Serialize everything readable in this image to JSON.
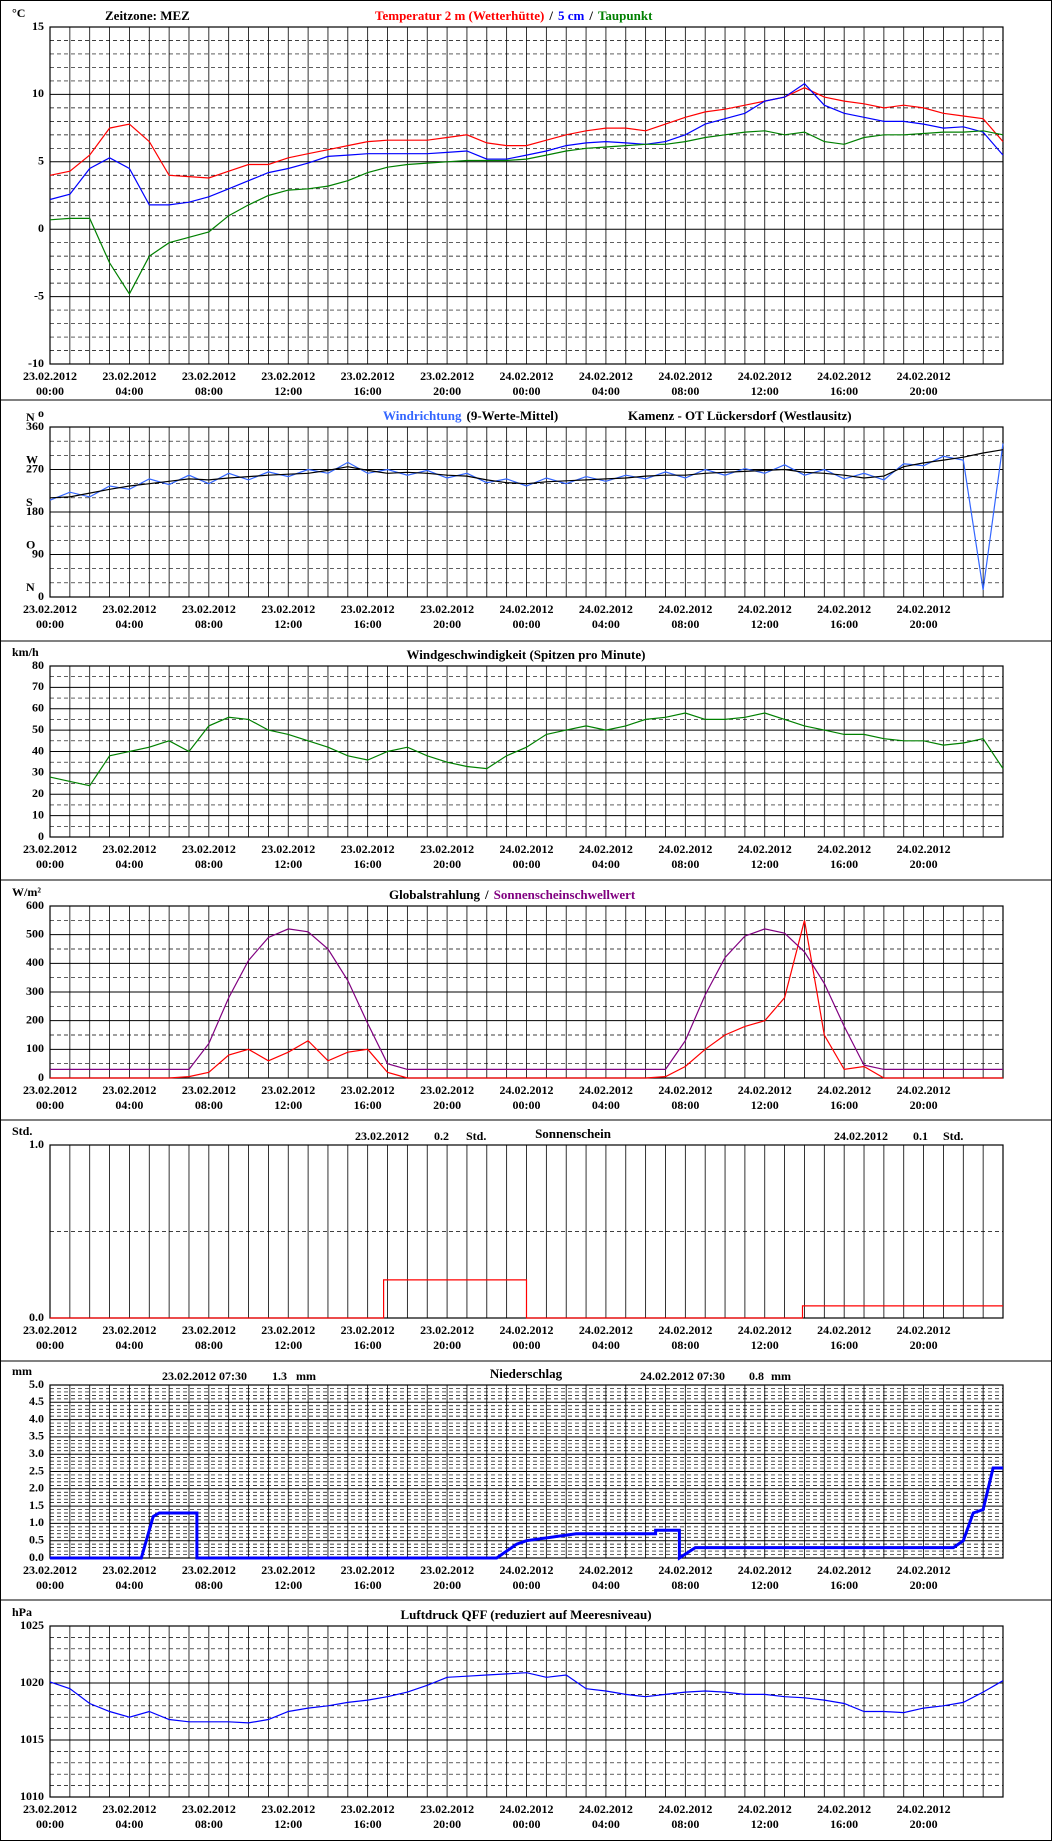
{
  "time_axis": {
    "xlim": [
      0,
      48
    ],
    "xticks": [
      {
        "value": 0,
        "date": "23.02.2012",
        "time": "00:00"
      },
      {
        "value": 4,
        "date": "23.02.2012",
        "time": "04:00"
      },
      {
        "value": 8,
        "date": "23.02.2012",
        "time": "08:00"
      },
      {
        "value": 12,
        "date": "23.02.2012",
        "time": "12:00"
      },
      {
        "value": 16,
        "date": "23.02.2012",
        "time": "16:00"
      },
      {
        "value": 20,
        "date": "23.02.2012",
        "time": "20:00"
      },
      {
        "value": 24,
        "date": "24.02.2012",
        "time": "00:00"
      },
      {
        "value": 28,
        "date": "24.02.2012",
        "time": "04:00"
      },
      {
        "value": 32,
        "date": "24.02.2012",
        "time": "08:00"
      },
      {
        "value": 36,
        "date": "24.02.2012",
        "time": "12:00"
      },
      {
        "value": 40,
        "date": "24.02.2012",
        "time": "16:00"
      },
      {
        "value": 44,
        "date": "24.02.2012",
        "time": "20:00"
      }
    ],
    "xgrid": [
      0,
      1,
      2,
      3,
      4,
      5,
      6,
      7,
      8,
      9,
      10,
      11,
      12,
      13,
      14,
      15,
      16,
      17,
      18,
      19,
      20,
      21,
      22,
      23,
      24,
      25,
      26,
      27,
      28,
      29,
      30,
      31,
      32,
      33,
      34,
      35,
      36,
      37,
      38,
      39,
      40,
      41,
      42,
      43,
      44,
      45,
      46,
      47,
      48
    ]
  },
  "chart_data": [
    {
      "type": "line",
      "header": "Zeitzone: MEZ",
      "y_unit": "°C",
      "legend_separator": "/",
      "ylim": [
        -10,
        15
      ],
      "yticks": [
        -10,
        -5,
        0,
        5,
        10,
        15
      ],
      "yminor": [
        -9,
        -8,
        -7,
        -6,
        -4,
        -3,
        -2,
        -1,
        1,
        2,
        3,
        4,
        6,
        7,
        8,
        9,
        11,
        12,
        13,
        14
      ],
      "x": [
        0,
        1,
        2,
        3,
        4,
        5,
        6,
        7,
        8,
        9,
        10,
        11,
        12,
        13,
        14,
        15,
        16,
        17,
        18,
        19,
        20,
        21,
        22,
        23,
        24,
        25,
        26,
        27,
        28,
        29,
        30,
        31,
        32,
        33,
        34,
        35,
        36,
        37,
        38,
        39,
        40,
        41,
        42,
        43,
        44,
        45,
        46,
        47,
        48
      ],
      "series": [
        {
          "name": "Temperatur 2 m (Wetterhütte)",
          "color": "#ff0000",
          "values": [
            4.0,
            4.3,
            5.5,
            7.5,
            7.8,
            6.5,
            4.0,
            3.9,
            3.8,
            4.3,
            4.8,
            4.8,
            5.3,
            5.6,
            5.9,
            6.2,
            6.5,
            6.6,
            6.6,
            6.6,
            6.8,
            7.0,
            6.4,
            6.2,
            6.2,
            6.6,
            7.0,
            7.3,
            7.5,
            7.5,
            7.3,
            7.8,
            8.3,
            8.7,
            8.9,
            9.2,
            9.5,
            9.8,
            10.5,
            9.8,
            9.5,
            9.3,
            9.0,
            9.2,
            9.0,
            8.6,
            8.4,
            8.2,
            6.5
          ]
        },
        {
          "name": "5 cm",
          "color": "#0000ff",
          "values": [
            2.2,
            2.6,
            4.5,
            5.3,
            4.5,
            1.8,
            1.8,
            2.0,
            2.4,
            3.0,
            3.6,
            4.2,
            4.5,
            4.9,
            5.4,
            5.5,
            5.6,
            5.6,
            5.6,
            5.6,
            5.7,
            5.8,
            5.2,
            5.2,
            5.5,
            5.8,
            6.2,
            6.4,
            6.5,
            6.4,
            6.3,
            6.5,
            7.0,
            7.8,
            8.2,
            8.6,
            9.5,
            9.8,
            10.8,
            9.2,
            8.6,
            8.3,
            8.0,
            8.0,
            7.8,
            7.5,
            7.6,
            7.2,
            5.5
          ]
        },
        {
          "name": "Taupunkt",
          "color": "#008000",
          "values": [
            0.7,
            0.8,
            0.8,
            -2.5,
            -4.8,
            -2.0,
            -1.0,
            -0.6,
            -0.2,
            1.0,
            1.8,
            2.5,
            2.9,
            3.0,
            3.2,
            3.6,
            4.2,
            4.6,
            4.8,
            4.9,
            5.0,
            5.1,
            5.1,
            5.1,
            5.2,
            5.5,
            5.8,
            6.0,
            6.1,
            6.2,
            6.3,
            6.3,
            6.5,
            6.8,
            7.0,
            7.2,
            7.3,
            7.0,
            7.2,
            6.5,
            6.3,
            6.8,
            7.0,
            7.0,
            7.1,
            7.2,
            7.2,
            7.3,
            7.0
          ]
        }
      ]
    },
    {
      "type": "line",
      "subtitle": "Kamenz - OT Lückersdorf (Westlausitz)",
      "y_unit": "o",
      "ylim": [
        0,
        360
      ],
      "yticks": [
        0,
        90,
        180,
        270,
        360
      ],
      "compass": [
        {
          "value": 0,
          "label": "N"
        },
        {
          "value": 90,
          "label": "O"
        },
        {
          "value": 180,
          "label": "S"
        },
        {
          "value": 270,
          "label": "W"
        },
        {
          "value": 360,
          "label": "N"
        }
      ],
      "yminor": [
        30,
        60,
        120,
        150,
        210,
        240,
        300,
        330
      ],
      "x": [
        0,
        1,
        2,
        3,
        4,
        5,
        6,
        7,
        8,
        9,
        10,
        11,
        12,
        13,
        14,
        15,
        16,
        17,
        18,
        19,
        20,
        21,
        22,
        23,
        24,
        25,
        26,
        27,
        28,
        29,
        30,
        31,
        32,
        33,
        34,
        35,
        36,
        37,
        38,
        39,
        40,
        41,
        42,
        43,
        44,
        45,
        46,
        47,
        48
      ],
      "series": [
        {
          "name": "Windrichtung",
          "color": "#3366ff",
          "values": [
            205,
            222,
            212,
            235,
            228,
            250,
            238,
            258,
            240,
            262,
            248,
            265,
            255,
            270,
            262,
            285,
            262,
            270,
            258,
            268,
            252,
            262,
            242,
            250,
            235,
            252,
            240,
            255,
            245,
            258,
            250,
            265,
            252,
            270,
            258,
            272,
            262,
            280,
            258,
            270,
            250,
            262,
            248,
            282,
            278,
            298,
            290,
            15,
            325
          ]
        },
        {
          "name": "(9-Werte-Mittel)",
          "color": "#000000",
          "values": [
            210,
            212,
            220,
            228,
            235,
            240,
            245,
            250,
            248,
            252,
            255,
            258,
            260,
            262,
            268,
            276,
            268,
            262,
            264,
            262,
            258,
            256,
            248,
            242,
            240,
            244,
            246,
            248,
            250,
            252,
            256,
            258,
            258,
            262,
            264,
            266,
            268,
            270,
            264,
            262,
            258,
            252,
            256,
            276,
            284,
            290,
            296,
            305,
            312
          ]
        }
      ]
    },
    {
      "type": "line",
      "title": "Windgeschwindigkeit (Spitzen pro Minute)",
      "y_unit": "km/h",
      "ylim": [
        0,
        80
      ],
      "yticks": [
        0,
        10,
        20,
        30,
        40,
        50,
        60,
        70,
        80
      ],
      "yminor": [
        5,
        15,
        25,
        35,
        45,
        55,
        65,
        75
      ],
      "x": [
        0,
        1,
        2,
        3,
        4,
        5,
        6,
        7,
        8,
        9,
        10,
        11,
        12,
        13,
        14,
        15,
        16,
        17,
        18,
        19,
        20,
        21,
        22,
        23,
        24,
        25,
        26,
        27,
        28,
        29,
        30,
        31,
        32,
        33,
        34,
        35,
        36,
        37,
        38,
        39,
        40,
        41,
        42,
        43,
        44,
        45,
        46,
        47,
        48
      ],
      "series": [
        {
          "color": "#008000",
          "values": [
            28,
            26,
            24,
            38,
            40,
            42,
            45,
            40,
            52,
            56,
            55,
            50,
            48,
            45,
            42,
            38,
            36,
            40,
            42,
            38,
            35,
            33,
            32,
            38,
            42,
            48,
            50,
            52,
            50,
            52,
            55,
            56,
            58,
            55,
            55,
            56,
            58,
            55,
            52,
            50,
            48,
            48,
            46,
            45,
            45,
            43,
            44,
            46,
            32
          ]
        }
      ]
    },
    {
      "type": "line",
      "y_unit": "W/m²",
      "legend_separator": "/",
      "ylim": [
        0,
        600
      ],
      "yticks": [
        0,
        100,
        200,
        300,
        400,
        500,
        600
      ],
      "yminor": [
        50,
        150,
        250,
        350,
        450,
        550
      ],
      "x": [
        0,
        1,
        2,
        3,
        4,
        5,
        6,
        7,
        8,
        9,
        10,
        11,
        12,
        13,
        14,
        15,
        16,
        17,
        18,
        19,
        20,
        21,
        22,
        23,
        24,
        25,
        26,
        27,
        28,
        29,
        30,
        31,
        32,
        33,
        34,
        35,
        36,
        37,
        38,
        39,
        40,
        41,
        42,
        43,
        44,
        45,
        46,
        47,
        48
      ],
      "series": [
        {
          "name": "Globalstrahlung",
          "color": "#ff0000",
          "label_color": "#000000",
          "values": [
            0,
            0,
            0,
            0,
            0,
            0,
            0,
            5,
            20,
            80,
            100,
            60,
            90,
            130,
            60,
            90,
            100,
            20,
            0,
            0,
            0,
            0,
            0,
            0,
            0,
            0,
            0,
            0,
            0,
            0,
            0,
            5,
            40,
            100,
            150,
            180,
            200,
            280,
            550,
            150,
            30,
            40,
            0,
            0,
            0,
            0,
            0,
            0,
            0
          ]
        },
        {
          "name": "Sonnenscheinschwellwert",
          "color": "#800080",
          "label_color": "#800080",
          "values": [
            30,
            30,
            30,
            30,
            30,
            30,
            30,
            30,
            120,
            280,
            410,
            490,
            520,
            510,
            450,
            340,
            190,
            50,
            30,
            30,
            30,
            30,
            30,
            30,
            30,
            30,
            30,
            30,
            30,
            30,
            30,
            30,
            130,
            290,
            420,
            495,
            520,
            505,
            440,
            330,
            180,
            45,
            30,
            30,
            30,
            30,
            30,
            30,
            30
          ]
        }
      ]
    },
    {
      "type": "line",
      "title": "Sonnenschein",
      "y_unit": "Std.",
      "ylim": [
        0,
        1
      ],
      "yticks": [
        {
          "value": 0,
          "label": "0.0"
        },
        {
          "value": 1,
          "label": "1.0"
        }
      ],
      "yminor": [
        0.5
      ],
      "annotations": [
        {
          "date": "23.02.2012",
          "value": 0.2,
          "unit": "Std."
        },
        {
          "date": "24.02.2012",
          "value": 0.1,
          "unit": "Std."
        }
      ],
      "x": [
        0,
        16.8,
        16.8,
        24,
        24,
        37.9,
        37.9,
        48
      ],
      "series": [
        {
          "color": "#ff0000",
          "values": [
            0,
            0,
            0.22,
            0.22,
            0,
            0,
            0.07,
            0.07
          ]
        }
      ]
    },
    {
      "type": "line",
      "title": "Niederschlag",
      "y_unit": "mm",
      "ylim": [
        0,
        5
      ],
      "yticks": [
        {
          "value": 0,
          "label": "0.0"
        },
        0.5,
        {
          "value": 1,
          "label": "1.0"
        },
        1.5,
        {
          "value": 2,
          "label": "2.0"
        },
        2.5,
        {
          "value": 3,
          "label": "3.0"
        },
        3.5,
        {
          "value": 4,
          "label": "4.0"
        },
        4.5,
        {
          "value": 5,
          "label": "5.0"
        }
      ],
      "yminor": [
        0.1,
        0.2,
        0.3,
        0.4,
        0.6,
        0.7,
        0.8,
        0.9,
        1.1,
        1.2,
        1.3,
        1.4,
        1.6,
        1.7,
        1.8,
        1.9,
        2.1,
        2.2,
        2.3,
        2.4,
        2.6,
        2.7,
        2.8,
        2.9,
        3.1,
        3.2,
        3.3,
        3.4,
        3.6,
        3.7,
        3.8,
        3.9,
        4.1,
        4.2,
        4.3,
        4.4,
        4.6,
        4.7,
        4.8,
        4.9
      ],
      "annotations": [
        {
          "date": "23.02.2012 07:30",
          "value": 1.3,
          "unit": "mm"
        },
        {
          "date": "24.02.2012 07:30",
          "value": 0.8,
          "unit": "mm"
        }
      ],
      "x": [
        0,
        4.6,
        5.2,
        5.5,
        7.4,
        7.4,
        22.5,
        23.5,
        24,
        26.5,
        30.5,
        30.5,
        31.7,
        31.7,
        32.5,
        45.5,
        46,
        46.5,
        47,
        47.5,
        48
      ],
      "series": [
        {
          "color": "#0000ff",
          "width": 3,
          "values": [
            0,
            0,
            1.2,
            1.3,
            1.3,
            0,
            0,
            0.4,
            0.5,
            0.7,
            0.7,
            0.8,
            0.8,
            0,
            0.3,
            0.3,
            0.5,
            1.3,
            1.4,
            2.6,
            2.6
          ]
        }
      ]
    },
    {
      "type": "line",
      "title": "Luftdruck QFF (reduziert auf Meeresniveau)",
      "y_unit": "hPa",
      "ylim": [
        1010,
        1025
      ],
      "yticks": [
        1010,
        1015,
        1020,
        1025
      ],
      "yminor": [
        1011,
        1012,
        1013,
        1014,
        1016,
        1017,
        1018,
        1019,
        1021,
        1022,
        1023,
        1024
      ],
      "x": [
        0,
        1,
        2,
        3,
        4,
        5,
        6,
        7,
        8,
        9,
        10,
        11,
        12,
        13,
        14,
        15,
        16,
        17,
        18,
        19,
        20,
        21,
        22,
        23,
        24,
        25,
        26,
        27,
        28,
        29,
        30,
        31,
        32,
        33,
        34,
        35,
        36,
        37,
        38,
        39,
        40,
        41,
        42,
        43,
        44,
        45,
        46,
        47,
        48
      ],
      "series": [
        {
          "color": "#0000ff",
          "values": [
            1020.1,
            1019.5,
            1018.2,
            1017.5,
            1017.0,
            1017.5,
            1016.8,
            1016.6,
            1016.6,
            1016.6,
            1016.5,
            1016.8,
            1017.5,
            1017.8,
            1018.0,
            1018.3,
            1018.5,
            1018.8,
            1019.2,
            1019.8,
            1020.5,
            1020.6,
            1020.7,
            1020.8,
            1020.9,
            1020.5,
            1020.7,
            1019.5,
            1019.3,
            1019.0,
            1018.8,
            1019.0,
            1019.2,
            1019.3,
            1019.2,
            1019.0,
            1019.0,
            1018.8,
            1018.7,
            1018.5,
            1018.2,
            1017.5,
            1017.5,
            1017.4,
            1017.8,
            1018.0,
            1018.3,
            1019.2,
            1020.2
          ]
        }
      ]
    }
  ]
}
